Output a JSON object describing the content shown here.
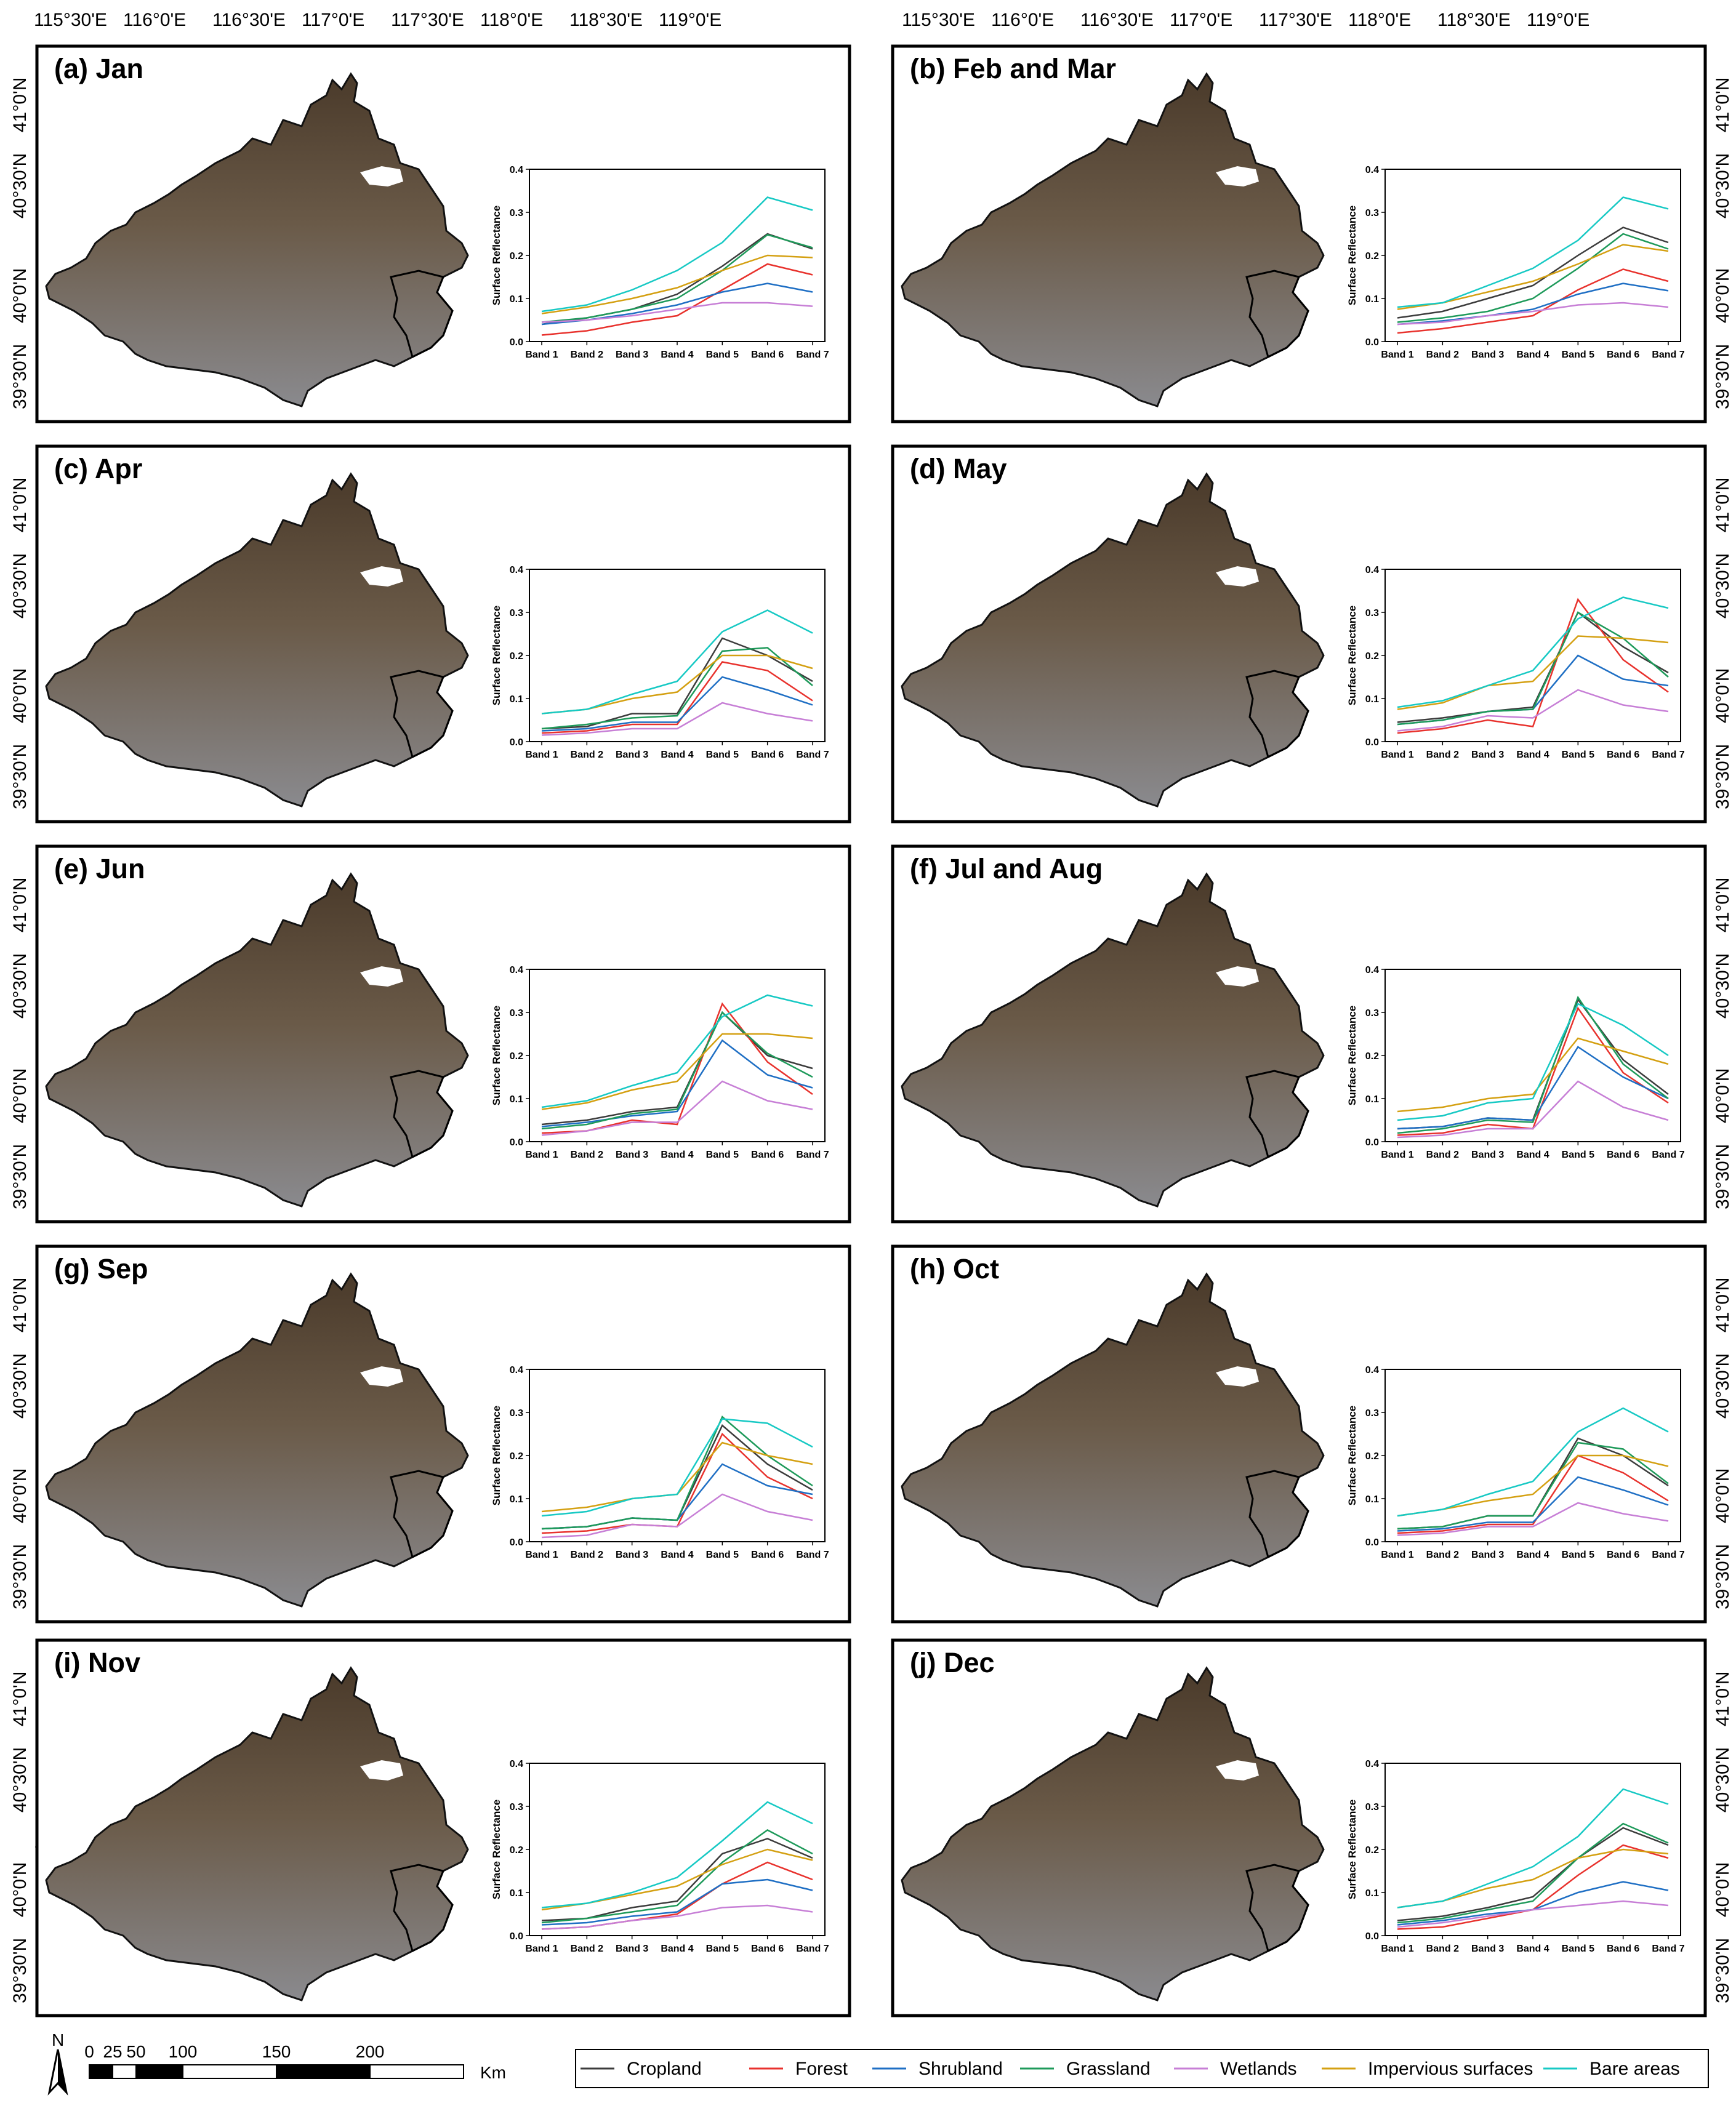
{
  "lon_labels": [
    "115°30'E",
    "116°0'E",
    "116°30'E",
    "117°0'E",
    "117°30'E",
    "118°0'E",
    "118°30'E",
    "119°0'E"
  ],
  "lat_labels": [
    "41°0'N",
    "40°30'N",
    "40°0'N",
    "39°30'N"
  ],
  "scale_bar": {
    "north_label": "N",
    "labels": [
      "0",
      "25",
      "50",
      "100",
      "150",
      "200"
    ],
    "unit": "Km"
  },
  "chart_data": {
    "type": "line",
    "categories": [
      "Band 1",
      "Band 2",
      "Band 3",
      "Band 4",
      "Band 5",
      "Band 6",
      "Band 7"
    ],
    "ylabel": "Surface Reflectance",
    "ylim": [
      0,
      0.4
    ],
    "yticks": [
      "0.0",
      "0.1",
      "0.2",
      "0.3",
      "0.4"
    ],
    "series_names": [
      "Cropland",
      "Forest",
      "Shrubland",
      "Grassland",
      "Wetlands",
      "Impervious surfaces",
      "Bare areas"
    ],
    "series_colors": [
      "#3c3c3c",
      "#e8322d",
      "#1f6fc4",
      "#1e9a5a",
      "#c77fd6",
      "#d4a012",
      "#17c9c4"
    ],
    "panels": [
      {
        "title": "(a) Jan",
        "series": [
          [
            0.04,
            0.055,
            0.075,
            0.11,
            0.175,
            0.25,
            0.215
          ],
          [
            0.015,
            0.025,
            0.045,
            0.06,
            0.12,
            0.18,
            0.155
          ],
          [
            0.04,
            0.05,
            0.065,
            0.085,
            0.115,
            0.135,
            0.115
          ],
          [
            0.045,
            0.055,
            0.075,
            0.1,
            0.165,
            0.248,
            0.218
          ],
          [
            0.045,
            0.05,
            0.06,
            0.075,
            0.09,
            0.09,
            0.082
          ],
          [
            0.065,
            0.08,
            0.1,
            0.125,
            0.165,
            0.2,
            0.195
          ],
          [
            0.07,
            0.085,
            0.12,
            0.165,
            0.23,
            0.335,
            0.305
          ]
        ]
      },
      {
        "title": "(b) Feb and Mar",
        "series": [
          [
            0.055,
            0.07,
            0.1,
            0.13,
            0.2,
            0.265,
            0.23
          ],
          [
            0.02,
            0.03,
            0.045,
            0.06,
            0.12,
            0.168,
            0.14
          ],
          [
            0.04,
            0.048,
            0.06,
            0.075,
            0.11,
            0.135,
            0.118
          ],
          [
            0.045,
            0.055,
            0.07,
            0.1,
            0.17,
            0.25,
            0.215
          ],
          [
            0.04,
            0.045,
            0.06,
            0.07,
            0.085,
            0.09,
            0.08
          ],
          [
            0.075,
            0.09,
            0.115,
            0.14,
            0.18,
            0.225,
            0.21
          ],
          [
            0.08,
            0.09,
            0.13,
            0.17,
            0.235,
            0.335,
            0.308
          ]
        ]
      },
      {
        "title": "(c) Apr",
        "series": [
          [
            0.03,
            0.035,
            0.065,
            0.065,
            0.24,
            0.2,
            0.14
          ],
          [
            0.02,
            0.025,
            0.04,
            0.04,
            0.185,
            0.165,
            0.095
          ],
          [
            0.025,
            0.03,
            0.045,
            0.045,
            0.15,
            0.12,
            0.085
          ],
          [
            0.03,
            0.04,
            0.055,
            0.06,
            0.21,
            0.218,
            0.13
          ],
          [
            0.015,
            0.02,
            0.03,
            0.03,
            0.09,
            0.065,
            0.048
          ],
          [
            0.065,
            0.075,
            0.1,
            0.115,
            0.2,
            0.2,
            0.17
          ],
          [
            0.065,
            0.075,
            0.11,
            0.14,
            0.255,
            0.305,
            0.252
          ]
        ]
      },
      {
        "title": "(d) May",
        "series": [
          [
            0.045,
            0.055,
            0.07,
            0.08,
            0.3,
            0.22,
            0.16
          ],
          [
            0.02,
            0.03,
            0.05,
            0.035,
            0.33,
            0.19,
            0.115
          ],
          [
            0.04,
            0.05,
            0.07,
            0.075,
            0.2,
            0.145,
            0.13
          ],
          [
            0.04,
            0.05,
            0.07,
            0.075,
            0.3,
            0.24,
            0.15
          ],
          [
            0.025,
            0.035,
            0.06,
            0.055,
            0.12,
            0.085,
            0.07
          ],
          [
            0.075,
            0.09,
            0.13,
            0.14,
            0.245,
            0.24,
            0.23
          ],
          [
            0.08,
            0.095,
            0.13,
            0.165,
            0.285,
            0.335,
            0.31
          ]
        ]
      },
      {
        "title": "(e) Jun",
        "series": [
          [
            0.04,
            0.05,
            0.07,
            0.08,
            0.3,
            0.2,
            0.17
          ],
          [
            0.02,
            0.025,
            0.05,
            0.04,
            0.32,
            0.185,
            0.11
          ],
          [
            0.035,
            0.045,
            0.06,
            0.07,
            0.235,
            0.155,
            0.125
          ],
          [
            0.03,
            0.04,
            0.065,
            0.075,
            0.3,
            0.205,
            0.15
          ],
          [
            0.015,
            0.025,
            0.045,
            0.045,
            0.14,
            0.095,
            0.075
          ],
          [
            0.075,
            0.09,
            0.12,
            0.14,
            0.25,
            0.25,
            0.24
          ],
          [
            0.08,
            0.095,
            0.13,
            0.16,
            0.29,
            0.34,
            0.315
          ]
        ]
      },
      {
        "title": "(f) Jul and Aug",
        "series": [
          [
            0.03,
            0.035,
            0.055,
            0.05,
            0.33,
            0.19,
            0.11
          ],
          [
            0.015,
            0.02,
            0.04,
            0.03,
            0.31,
            0.16,
            0.09
          ],
          [
            0.03,
            0.035,
            0.055,
            0.05,
            0.22,
            0.15,
            0.1
          ],
          [
            0.02,
            0.03,
            0.05,
            0.045,
            0.335,
            0.18,
            0.1
          ],
          [
            0.01,
            0.015,
            0.03,
            0.03,
            0.14,
            0.08,
            0.05
          ],
          [
            0.07,
            0.08,
            0.1,
            0.11,
            0.24,
            0.21,
            0.18
          ],
          [
            0.05,
            0.06,
            0.09,
            0.1,
            0.32,
            0.27,
            0.2
          ]
        ]
      },
      {
        "title": "(g) Sep",
        "series": [
          [
            0.03,
            0.035,
            0.055,
            0.05,
            0.27,
            0.18,
            0.12
          ],
          [
            0.02,
            0.025,
            0.04,
            0.035,
            0.25,
            0.15,
            0.1
          ],
          [
            0.03,
            0.035,
            0.055,
            0.05,
            0.18,
            0.13,
            0.11
          ],
          [
            0.03,
            0.035,
            0.055,
            0.05,
            0.29,
            0.2,
            0.13
          ],
          [
            0.01,
            0.015,
            0.04,
            0.035,
            0.11,
            0.07,
            0.05
          ],
          [
            0.07,
            0.08,
            0.1,
            0.11,
            0.23,
            0.2,
            0.18
          ],
          [
            0.06,
            0.07,
            0.1,
            0.11,
            0.285,
            0.275,
            0.22
          ]
        ]
      },
      {
        "title": "(h) Oct",
        "series": [
          [
            0.03,
            0.035,
            0.06,
            0.06,
            0.24,
            0.2,
            0.13
          ],
          [
            0.02,
            0.025,
            0.04,
            0.04,
            0.2,
            0.16,
            0.095
          ],
          [
            0.025,
            0.03,
            0.045,
            0.045,
            0.15,
            0.12,
            0.085
          ],
          [
            0.03,
            0.035,
            0.06,
            0.06,
            0.23,
            0.215,
            0.135
          ],
          [
            0.015,
            0.02,
            0.035,
            0.035,
            0.09,
            0.065,
            0.048
          ],
          [
            0.06,
            0.075,
            0.095,
            0.11,
            0.2,
            0.2,
            0.175
          ],
          [
            0.06,
            0.075,
            0.11,
            0.14,
            0.255,
            0.31,
            0.255
          ]
        ]
      },
      {
        "title": "(i) Nov",
        "series": [
          [
            0.035,
            0.04,
            0.065,
            0.08,
            0.19,
            0.225,
            0.18
          ],
          [
            0.015,
            0.02,
            0.035,
            0.05,
            0.12,
            0.17,
            0.13
          ],
          [
            0.025,
            0.03,
            0.045,
            0.055,
            0.12,
            0.13,
            0.105
          ],
          [
            0.03,
            0.04,
            0.055,
            0.07,
            0.17,
            0.245,
            0.19
          ],
          [
            0.015,
            0.02,
            0.035,
            0.045,
            0.065,
            0.07,
            0.055
          ],
          [
            0.06,
            0.075,
            0.095,
            0.115,
            0.165,
            0.2,
            0.175
          ],
          [
            0.065,
            0.075,
            0.1,
            0.135,
            0.22,
            0.31,
            0.26
          ]
        ]
      },
      {
        "title": "(j) Dec",
        "series": [
          [
            0.035,
            0.045,
            0.065,
            0.09,
            0.18,
            0.25,
            0.21
          ],
          [
            0.015,
            0.02,
            0.04,
            0.06,
            0.14,
            0.21,
            0.18
          ],
          [
            0.025,
            0.035,
            0.05,
            0.06,
            0.1,
            0.125,
            0.105
          ],
          [
            0.03,
            0.04,
            0.06,
            0.08,
            0.18,
            0.26,
            0.215
          ],
          [
            0.02,
            0.03,
            0.045,
            0.06,
            0.07,
            0.08,
            0.07
          ],
          [
            0.065,
            0.08,
            0.11,
            0.13,
            0.18,
            0.2,
            0.19
          ],
          [
            0.065,
            0.08,
            0.12,
            0.16,
            0.23,
            0.34,
            0.305
          ]
        ]
      }
    ]
  }
}
